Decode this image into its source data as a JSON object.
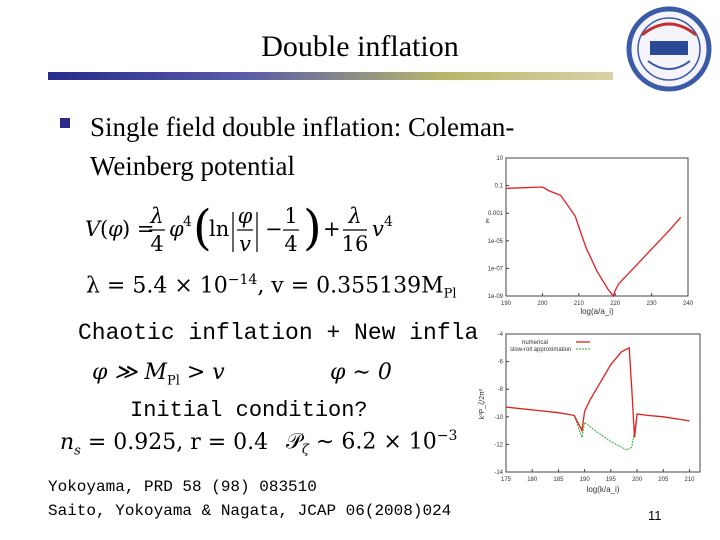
{
  "slide": {
    "title": "Double inflation",
    "bullet": "Single field double inflation: Coleman-Weinberg potential",
    "lambda_line_a": "λ = 5.4 × 10",
    "lambda_exp": "−14",
    "lambda_line_b": ",  v = 0.355139M",
    "lambda_sub": "Pl",
    "chaotic_text": "Chaotic inflation + New infla",
    "phi_cond_1": "φ ≫ M",
    "phi_cond_1_sub": "Pl",
    "phi_cond_1_rest": " > v",
    "phi_cond_2": "φ ∼ 0",
    "initial_condition": "Initial condition?",
    "ns_text": "n",
    "ns_sub": "s",
    "ns_rest": " = 0.925,  r = 0.4",
    "p_text": "𝒫",
    "p_sub": "ζ",
    "p_rest": " ∼ 6.2 × 10",
    "p_exp": "−3",
    "ref1": "Yokoyama, PRD 58 (98) 083510",
    "ref2": "Saito, Yokoyama & Nagata, JCAP 06(2008)024",
    "page_number": "11"
  },
  "colors": {
    "accent": "#262a8a",
    "red": "#e02020",
    "green": "#30b030"
  },
  "chart_data": [
    {
      "type": "line",
      "xlabel": "log(a/a_i)",
      "ylabel": "ε",
      "x_ticks": [
        "190",
        "200",
        "210",
        "220",
        "230",
        "240"
      ],
      "y_ticks": [
        "10",
        "0.1",
        "0.001",
        "1e-05",
        "1e-07",
        "1e-09"
      ],
      "xlim": [
        190,
        240
      ],
      "series": [
        {
          "name": "",
          "color": "#e02020",
          "x": [
            190,
            195,
            200,
            202,
            205,
            209,
            210,
            212,
            215,
            218,
            219.5,
            220,
            221,
            225,
            230,
            235,
            238
          ],
          "y_log10": [
            -1.2,
            -1.15,
            -1.1,
            -1.4,
            -1.7,
            -3.2,
            -4.0,
            -5.5,
            -7.2,
            -8.5,
            -9.0,
            -8.6,
            -8.1,
            -7.0,
            -5.6,
            -4.2,
            -3.3
          ]
        }
      ]
    },
    {
      "type": "line",
      "xlabel": "log(k/a_i)",
      "ylabel": "k³P_ζ/2π²",
      "x_ticks": [
        "175",
        "180",
        "185",
        "190",
        "195",
        "200",
        "205",
        "210"
      ],
      "y_ticks": [
        "-4",
        "-6",
        "-8",
        "-10",
        "-12",
        "-14"
      ],
      "legend": [
        "numerical",
        "slow-roll approximation"
      ],
      "series": [
        {
          "name": "numerical",
          "color": "#e02020",
          "x": [
            175,
            180,
            185,
            188,
            189.5,
            190,
            191,
            193,
            195,
            197,
            198.5,
            199,
            199.5,
            200,
            202,
            205,
            210
          ],
          "y": [
            -9.3,
            -9.5,
            -9.7,
            -9.9,
            -11.0,
            -9.6,
            -8.8,
            -7.5,
            -6.2,
            -5.3,
            -5.0,
            -8.0,
            -11.5,
            -9.8,
            -9.9,
            -10.0,
            -10.3
          ]
        },
        {
          "name": "slow-roll approximation",
          "color": "#30b030",
          "x": [
            175,
            180,
            185,
            188,
            189.5,
            190,
            192,
            195,
            198,
            199,
            200,
            202,
            205,
            210
          ],
          "y": [
            -9.3,
            -9.5,
            -9.7,
            -9.9,
            -11.5,
            -10.4,
            -11.0,
            -11.8,
            -12.4,
            -12.2,
            -9.8,
            -9.9,
            -10.0,
            -10.3
          ]
        }
      ]
    }
  ]
}
